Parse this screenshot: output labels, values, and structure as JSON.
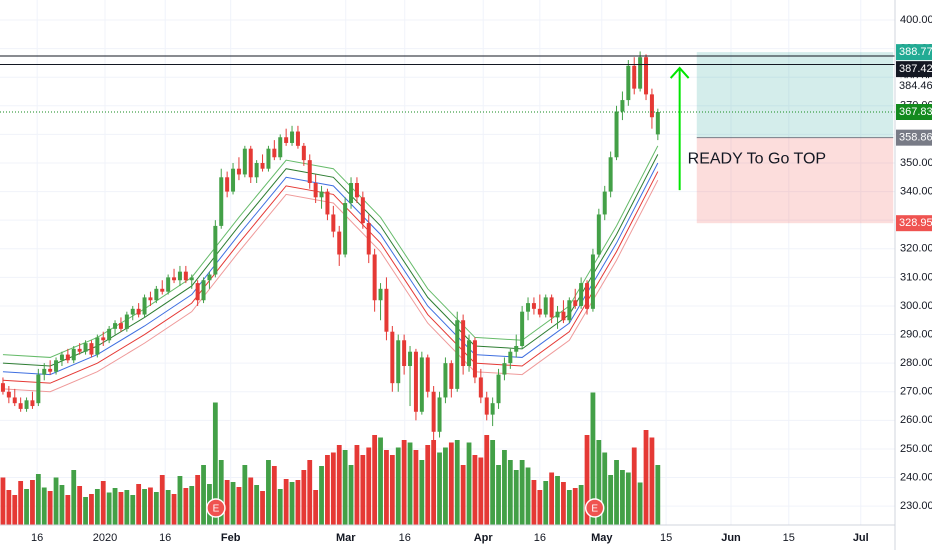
{
  "chart_data": {
    "type": "candlestick",
    "xlim": [
      -0.5,
      151.2
    ],
    "ylim": [
      223.4,
      407
    ],
    "xticks": [
      {
        "value": 5.8,
        "label": "16"
      },
      {
        "value": 17.3,
        "label": "2020"
      },
      {
        "value": 27.5,
        "label": "16"
      },
      {
        "value": 38.6,
        "label": "Feb"
      },
      {
        "value": 58.1,
        "label": "Mar"
      },
      {
        "value": 68.1,
        "label": "16"
      },
      {
        "value": 81.4,
        "label": "Apr"
      },
      {
        "value": 91,
        "label": "16"
      },
      {
        "value": 101.5,
        "label": "May"
      },
      {
        "value": 112.4,
        "label": "15"
      },
      {
        "value": 123.4,
        "label": "Jun"
      },
      {
        "value": 133.2,
        "label": "15"
      },
      {
        "value": 145.4,
        "label": "Jul"
      }
    ],
    "yticks": [
      {
        "value": 230,
        "label": "230.00"
      },
      {
        "value": 240,
        "label": "240.00"
      },
      {
        "value": 250,
        "label": "250.00"
      },
      {
        "value": 260,
        "label": "260.00"
      },
      {
        "value": 270,
        "label": "270.00"
      },
      {
        "value": 280,
        "label": "280.00"
      },
      {
        "value": 290,
        "label": "290.00"
      },
      {
        "value": 300,
        "label": "300.00"
      },
      {
        "value": 310,
        "label": "310.00"
      },
      {
        "value": 320,
        "label": "320.00"
      },
      {
        "value": 330,
        "label": "330.00"
      },
      {
        "value": 340,
        "label": "340.00"
      },
      {
        "value": 350,
        "label": "350.00"
      },
      {
        "value": 360,
        "label": "360.00"
      },
      {
        "value": 370,
        "label": "370.00"
      },
      {
        "value": 380,
        "label": "380.00"
      },
      {
        "value": 390,
        "label": "390.00"
      },
      {
        "value": 400,
        "label": "400.00"
      }
    ],
    "grid": true,
    "colors": {
      "up": "#43a047",
      "down": "#e53935"
    },
    "candles": [
      [
        273,
        275,
        269,
        270
      ],
      [
        270,
        272,
        266,
        268
      ],
      [
        268,
        271,
        265,
        266
      ],
      [
        266,
        268,
        263,
        264
      ],
      [
        264,
        268,
        263,
        267
      ],
      [
        267,
        270,
        264,
        265
      ],
      [
        266,
        278,
        265,
        276
      ],
      [
        276,
        280,
        274,
        278
      ],
      [
        278,
        281,
        276,
        277
      ],
      [
        277,
        282,
        276,
        281
      ],
      [
        281,
        284,
        279,
        283
      ],
      [
        283,
        285,
        280,
        281
      ],
      [
        281,
        286,
        280,
        285
      ],
      [
        285,
        287,
        283,
        284
      ],
      [
        284,
        288,
        283,
        287
      ],
      [
        287,
        288,
        282,
        283
      ],
      [
        283,
        290,
        282,
        289
      ],
      [
        289,
        291,
        286,
        288
      ],
      [
        288,
        293,
        287,
        292
      ],
      [
        292,
        295,
        290,
        294
      ],
      [
        294,
        296,
        291,
        292
      ],
      [
        292,
        298,
        291,
        297
      ],
      [
        297,
        300,
        295,
        299
      ],
      [
        299,
        301,
        296,
        297
      ],
      [
        297,
        304,
        296,
        303
      ],
      [
        303,
        305,
        300,
        302
      ],
      [
        302,
        307,
        301,
        306
      ],
      [
        306,
        309,
        304,
        305
      ],
      [
        305,
        311,
        304,
        310
      ],
      [
        310,
        313,
        308,
        309
      ],
      [
        309,
        314,
        307,
        312
      ],
      [
        312,
        314,
        308,
        309
      ],
      [
        309,
        311,
        306,
        310
      ],
      [
        308,
        309,
        300,
        302
      ],
      [
        302,
        310,
        301,
        309
      ],
      [
        309,
        312,
        306,
        311
      ],
      [
        311,
        330,
        310,
        328
      ],
      [
        328,
        348,
        327,
        345
      ],
      [
        345,
        347,
        338,
        340
      ],
      [
        340,
        350,
        339,
        348
      ],
      [
        348,
        352,
        344,
        346
      ],
      [
        346,
        356,
        345,
        355
      ],
      [
        355,
        356,
        343,
        345
      ],
      [
        345,
        351,
        343,
        350
      ],
      [
        350,
        353,
        347,
        348
      ],
      [
        348,
        356,
        347,
        355
      ],
      [
        355,
        358,
        351,
        352
      ],
      [
        352,
        360,
        351,
        359
      ],
      [
        359,
        362,
        356,
        357
      ],
      [
        357,
        363,
        356,
        361
      ],
      [
        361,
        363,
        355,
        356
      ],
      [
        356,
        357,
        349,
        351
      ],
      [
        351,
        353,
        341,
        343
      ],
      [
        343,
        346,
        336,
        338
      ],
      [
        338,
        342,
        334,
        340
      ],
      [
        340,
        341,
        330,
        332
      ],
      [
        332,
        335,
        324,
        326
      ],
      [
        326,
        328,
        314,
        318
      ],
      [
        318,
        338,
        317,
        336
      ],
      [
        336,
        345,
        334,
        343
      ],
      [
        343,
        345,
        336,
        338
      ],
      [
        338,
        340,
        327,
        329
      ],
      [
        329,
        332,
        315,
        318
      ],
      [
        318,
        320,
        298,
        302
      ],
      [
        302,
        308,
        295,
        306
      ],
      [
        306,
        310,
        288,
        291
      ],
      [
        291,
        293,
        270,
        273
      ],
      [
        273,
        290,
        270,
        288
      ],
      [
        288,
        290,
        276,
        279
      ],
      [
        279,
        286,
        265,
        284
      ],
      [
        284,
        285,
        260,
        263
      ],
      [
        263,
        284,
        262,
        282
      ],
      [
        282,
        283,
        268,
        270
      ],
      [
        270,
        272,
        252,
        256
      ],
      [
        256,
        270,
        254,
        268
      ],
      [
        268,
        282,
        266,
        280
      ],
      [
        280,
        281,
        268,
        271
      ],
      [
        271,
        298,
        270,
        295
      ],
      [
        295,
        297,
        276,
        279
      ],
      [
        279,
        290,
        277,
        288
      ],
      [
        288,
        289,
        273,
        275
      ],
      [
        275,
        278,
        266,
        268
      ],
      [
        268,
        270,
        260,
        262
      ],
      [
        262,
        268,
        258,
        266
      ],
      [
        266,
        278,
        264,
        276
      ],
      [
        276,
        282,
        274,
        280
      ],
      [
        280,
        285,
        278,
        284
      ],
      [
        284,
        290,
        282,
        286
      ],
      [
        286,
        300,
        285,
        298
      ],
      [
        298,
        303,
        295,
        301
      ],
      [
        301,
        303,
        297,
        299
      ],
      [
        299,
        304,
        296,
        297
      ],
      [
        297,
        304,
        296,
        303
      ],
      [
        303,
        304,
        294,
        296
      ],
      [
        296,
        300,
        292,
        298
      ],
      [
        298,
        302,
        294,
        295
      ],
      [
        295,
        303,
        294,
        302
      ],
      [
        302,
        306,
        299,
        300
      ],
      [
        300,
        310,
        299,
        308
      ],
      [
        308,
        309,
        297,
        299
      ],
      [
        299,
        320,
        298,
        318
      ],
      [
        318,
        334,
        317,
        332
      ],
      [
        332,
        342,
        330,
        340
      ],
      [
        340,
        354,
        338,
        352
      ],
      [
        352,
        370,
        351,
        368
      ],
      [
        368,
        375,
        365,
        372
      ],
      [
        372,
        386,
        370,
        384
      ],
      [
        384,
        387,
        374,
        376
      ],
      [
        376,
        389,
        375,
        387
      ],
      [
        387,
        388,
        372,
        374
      ],
      [
        374,
        376,
        362,
        366
      ],
      [
        360,
        369,
        358,
        367.83
      ]
    ],
    "volume": [
      95,
      70,
      60,
      88,
      72,
      90,
      102,
      75,
      68,
      95,
      80,
      60,
      110,
      78,
      56,
      62,
      72,
      88,
      65,
      74,
      66,
      70,
      60,
      82,
      72,
      75,
      66,
      100,
      70,
      62,
      98,
      74,
      78,
      100,
      120,
      82,
      245,
      130,
      90,
      86,
      76,
      120,
      95,
      80,
      68,
      130,
      118,
      72,
      92,
      86,
      90,
      110,
      130,
      70,
      118,
      140,
      145,
      160,
      150,
      120,
      160,
      140,
      155,
      180,
      175,
      150,
      140,
      155,
      170,
      165,
      150,
      130,
      160,
      170,
      145,
      155,
      165,
      170,
      120,
      165,
      140,
      135,
      180,
      170,
      120,
      150,
      130,
      110,
      130,
      115,
      90,
      70,
      88,
      105,
      98,
      86,
      70,
      74,
      80,
      180,
      265,
      170,
      145,
      100,
      130,
      110,
      105,
      155,
      85,
      190,
      175,
      120
    ],
    "volume_lim": [
      0,
      300
    ],
    "ma_x": [
      0,
      8,
      16,
      24,
      32,
      40,
      48,
      56,
      64,
      72,
      80,
      88,
      96,
      104,
      111
    ],
    "moving_averages": [
      {
        "color": "#66bb6a",
        "values": [
          283,
          282,
          289,
          299,
          310,
          331,
          351,
          348,
          331,
          306,
          289,
          288,
          300,
          328,
          356
        ]
      },
      {
        "color": "#2e7d32",
        "values": [
          280,
          279,
          286,
          296,
          307,
          328,
          348,
          345,
          328,
          303,
          286,
          285,
          297,
          325,
          353
        ]
      },
      {
        "color": "#3f6fe0",
        "values": [
          277,
          276,
          283,
          293,
          304,
          325,
          345,
          342,
          325,
          300,
          283,
          282,
          294,
          322,
          350
        ]
      },
      {
        "color": "#e53935",
        "values": [
          274,
          273,
          280,
          290,
          301,
          322,
          342,
          339,
          322,
          297,
          280,
          279,
          291,
          319,
          347
        ]
      },
      {
        "color": "#ef9a9a",
        "values": [
          271,
          270,
          277,
          287,
          298,
          319,
          339,
          336,
          319,
          294,
          277,
          276,
          288,
          316,
          344
        ]
      }
    ],
    "levels": [
      {
        "value": 388.77,
        "color": "#22ab94",
        "text_color": "#ffffff",
        "line": "none"
      },
      {
        "value": 387.42,
        "color": "#131722",
        "text_color": "#ffffff",
        "line": "solid"
      },
      {
        "value": 384.46,
        "color": "#ffffff",
        "text_color": "#131722",
        "line": "solid"
      },
      {
        "value": 367.83,
        "color": "#138a1e",
        "text_color": "#ffffff",
        "line": "dotted"
      },
      {
        "value": 358.86,
        "color": "#787b86",
        "text_color": "#ffffff",
        "line": "none"
      },
      {
        "value": 328.95,
        "color": "#ef5350",
        "text_color": "#ffffff",
        "line": "none"
      }
    ],
    "position": {
      "x": [
        117.6,
        150.9
      ],
      "top": 388.77,
      "entry": 358.86,
      "bottom": 328.95
    },
    "arrow": {
      "x": 114.7,
      "from": 340.5,
      "to": 383.2,
      "color": "#00e600"
    },
    "annotation": "READY To Go TOP",
    "events": [
      {
        "x": 36.1,
        "label": "E"
      },
      {
        "x": 100.3,
        "label": "E"
      }
    ]
  }
}
